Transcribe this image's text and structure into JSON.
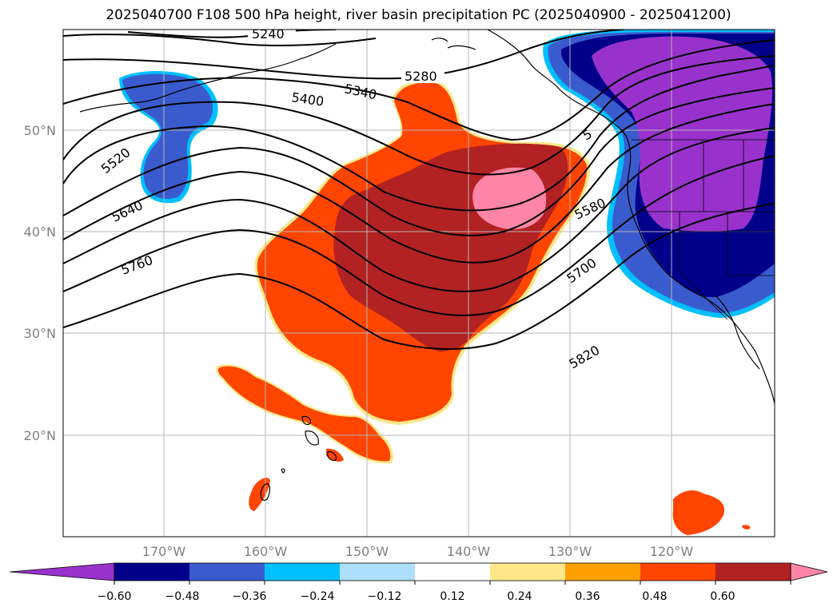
{
  "title": "2025040700 F108 500 hPa height, river basin precipitation PC (2025040900 - 2025041200)",
  "latitude_ticks": [
    "50°N",
    "40°N",
    "30°N",
    "20°N"
  ],
  "longitude_ticks": [
    "170°W",
    "160°W",
    "150°W",
    "140°W",
    "130°W",
    "120°W"
  ],
  "height_contour_labels": [
    "5240",
    "5280",
    "5340",
    "5400",
    "5520",
    "5580",
    "5640",
    "5700",
    "5760",
    "5820",
    "5"
  ],
  "colorbar": {
    "tick_labels": [
      "−0.60",
      "−0.48",
      "−0.36",
      "−0.24",
      "−0.12",
      "0.12",
      "0.24",
      "0.36",
      "0.48",
      "0.60"
    ],
    "colors": [
      "#9932CC",
      "#00008B",
      "#3A5BCD",
      "#00BFFF",
      "#ADDFFA",
      "#FFFFFF",
      "#FFE88A",
      "#FFA000",
      "#FF4500",
      "#B22222",
      "#FF85A8"
    ]
  }
}
